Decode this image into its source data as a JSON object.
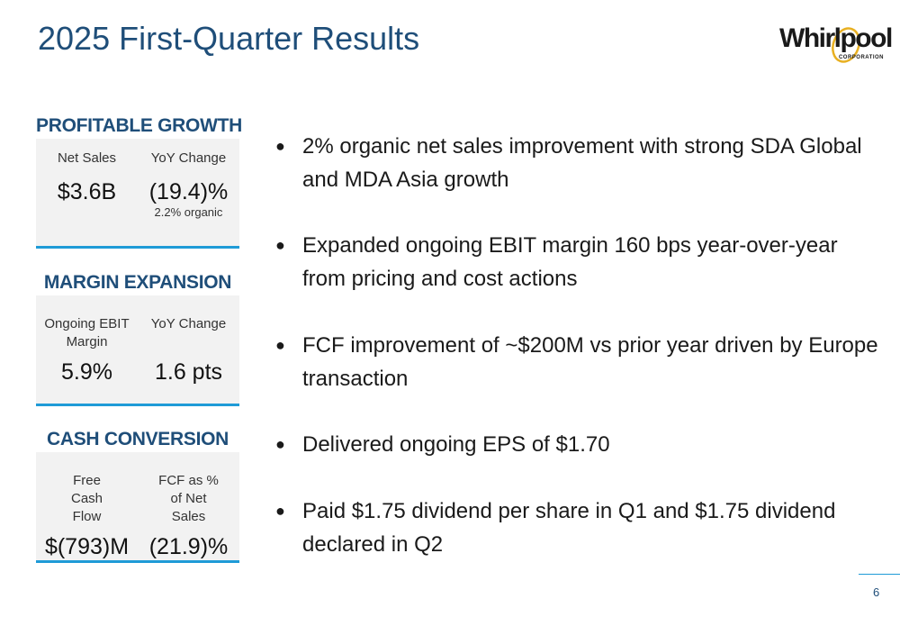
{
  "slide": {
    "title": "2025 First-Quarter Results",
    "page_number": "6"
  },
  "logo": {
    "wordmark": "Whirlpool",
    "subtext": "CORPORATION"
  },
  "kpis": [
    {
      "heading": "PROFITABLE GROWTH",
      "col1": {
        "label": "Net Sales",
        "value": "$3.6B",
        "sub": ""
      },
      "col2": {
        "label": "YoY Change",
        "value": "(19.4)%",
        "sub": "2.2% organic"
      }
    },
    {
      "heading": "MARGIN EXPANSION",
      "col1": {
        "label": "Ongoing EBIT Margin",
        "value": "5.9%",
        "sub": ""
      },
      "col2": {
        "label": "YoY Change",
        "value": "1.6 pts",
        "sub": ""
      }
    },
    {
      "heading": "CASH CONVERSION",
      "col1": {
        "label": "Free Cash Flow",
        "value": "$(793)M",
        "sub": ""
      },
      "col2": {
        "label": "FCF as % of Net Sales",
        "value": "(21.9)%",
        "sub": ""
      }
    }
  ],
  "bullets": [
    "2% organic net sales improvement with strong SDA Global and MDA Asia growth",
    "Expanded ongoing EBIT margin 160 bps year-over-year from pricing and cost actions",
    "FCF improvement of ~$200M vs prior year driven by Europe transaction",
    "Delivered ongoing EPS of $1.70",
    "Paid $1.75 dividend per share in Q1 and $1.75 dividend declared in Q2"
  ],
  "colors": {
    "title": "#1f4e79",
    "accent": "#1f9bd7",
    "logo_swoosh": "#e8b022",
    "panel": "#f2f2f2"
  }
}
